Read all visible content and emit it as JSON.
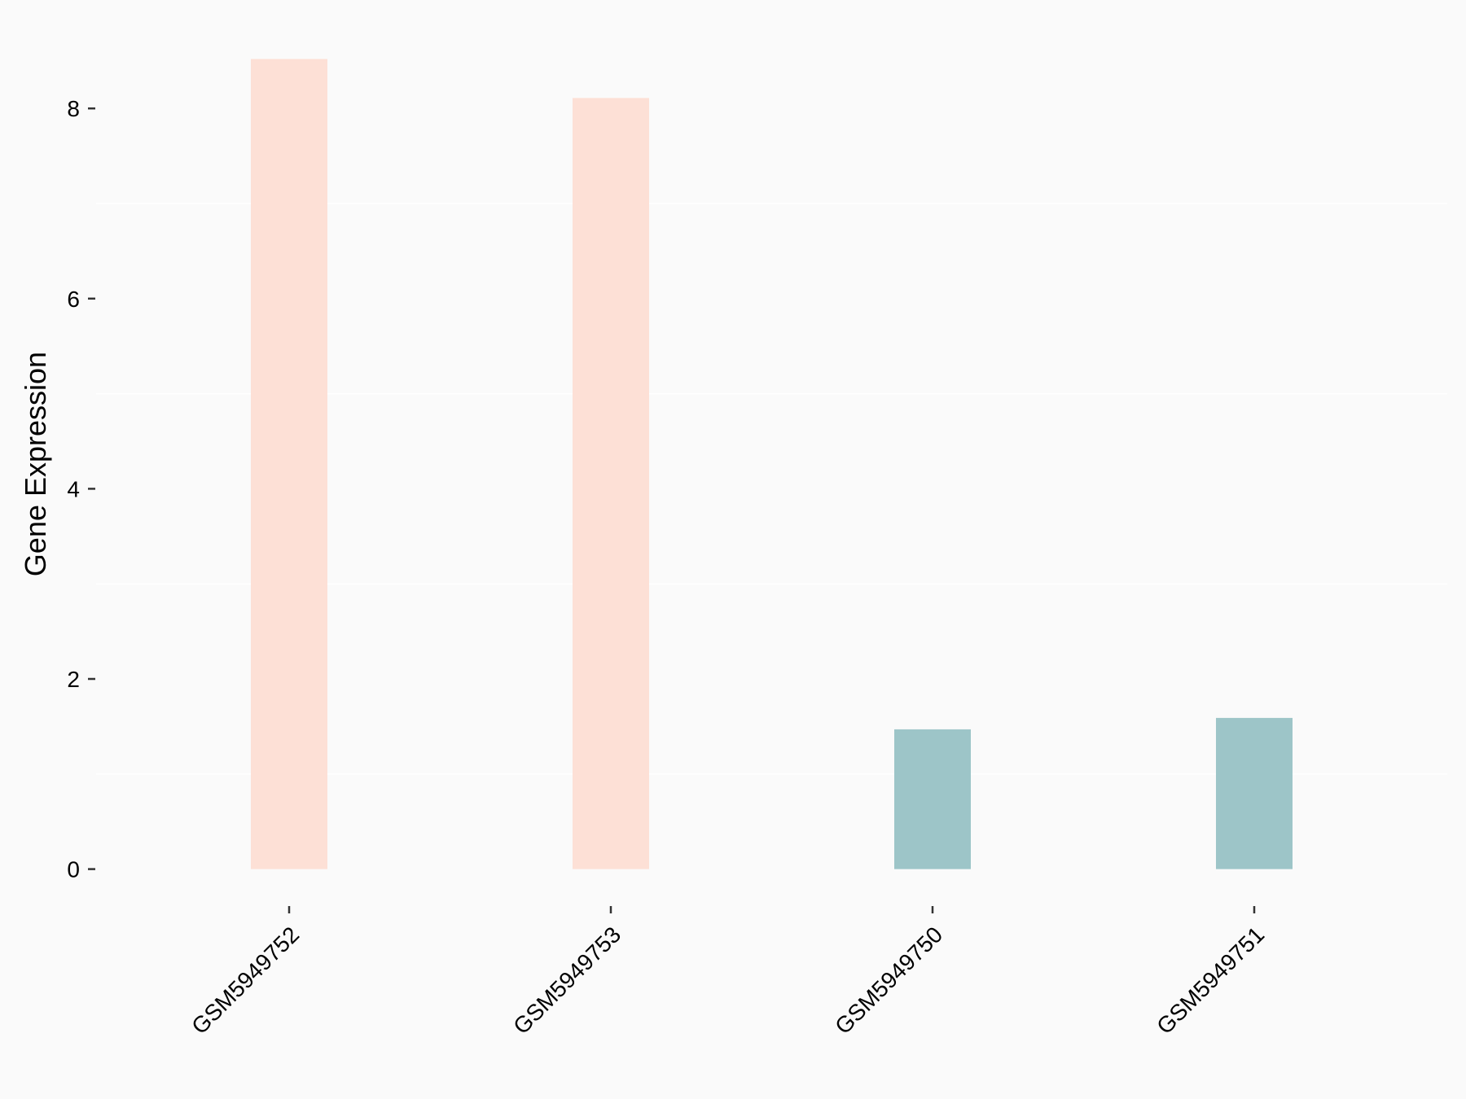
{
  "chart_data": {
    "type": "bar",
    "categories": [
      "GSM5949752",
      "GSM5949753",
      "GSM5949750",
      "GSM5949751"
    ],
    "values": [
      8.52,
      8.11,
      1.47,
      1.59
    ],
    "bar_colors": [
      "#FDE0D6",
      "#FDE0D6",
      "#9DC5C8",
      "#9DC5C8"
    ],
    "title": "",
    "xlabel": "",
    "ylabel": "Gene Expression",
    "ylim": [
      0,
      8.5
    ],
    "yticks": [
      0,
      2,
      4,
      6,
      8
    ],
    "grid": "horizontal minor only",
    "background": "#FAFAFA"
  }
}
